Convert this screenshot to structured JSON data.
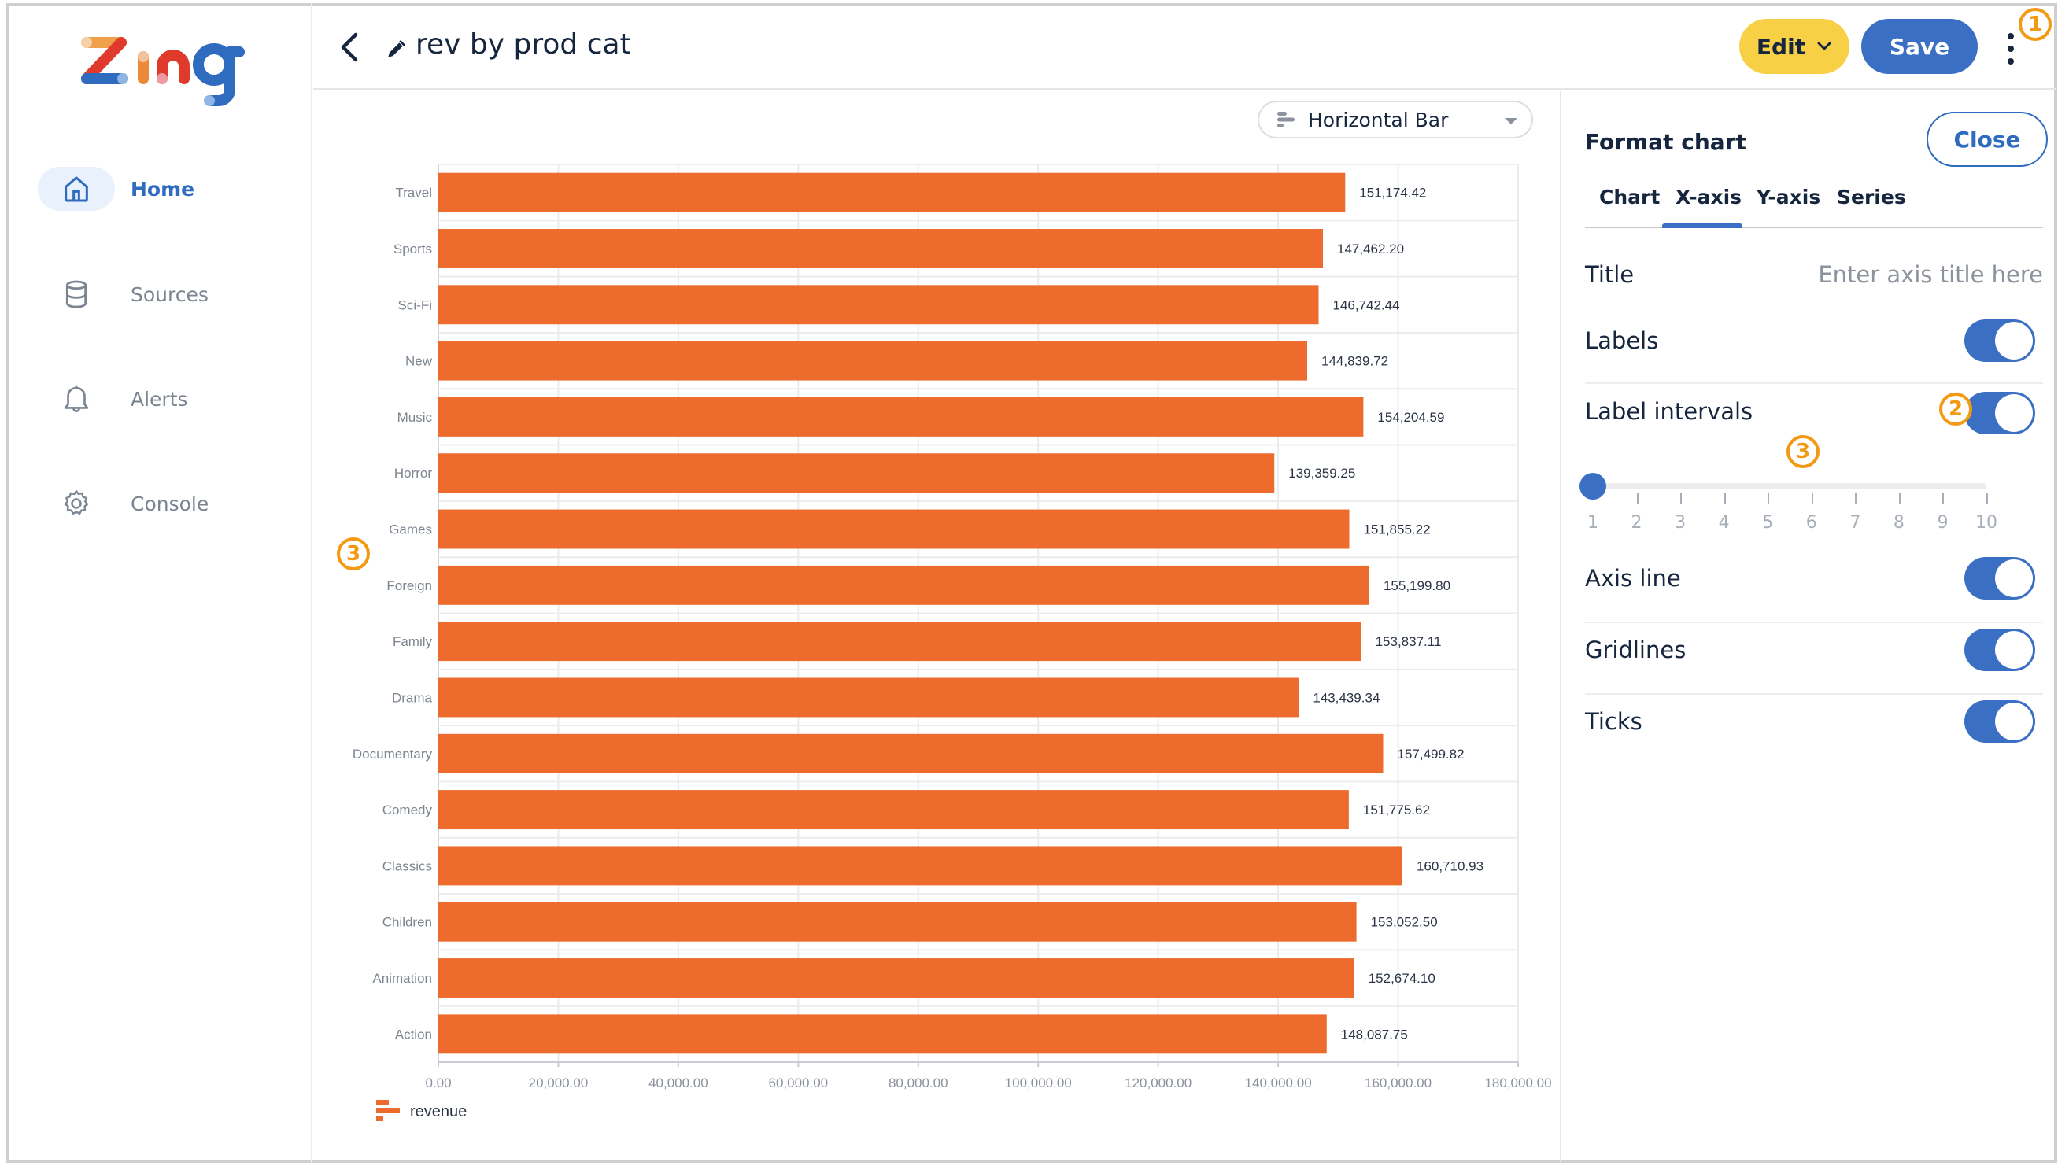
{
  "app": {
    "name": "Zing"
  },
  "sidebar": {
    "items": [
      {
        "label": "Home",
        "icon": "home-icon",
        "active": true
      },
      {
        "label": "Sources",
        "icon": "database-icon",
        "active": false
      },
      {
        "label": "Alerts",
        "icon": "bell-icon",
        "active": false
      },
      {
        "label": "Console",
        "icon": "gear-icon",
        "active": false
      }
    ]
  },
  "header": {
    "title": "rev by prod cat",
    "edit_label": "Edit",
    "save_label": "Save"
  },
  "annotations": {
    "one": "1",
    "two": "2",
    "three": "3"
  },
  "chart_type": {
    "selected": "Horizontal Bar"
  },
  "colors": {
    "bar": "#ec6b2d",
    "accent": "#3a6fc4",
    "edit": "#f7d046",
    "annotation": "#f39a12"
  },
  "format_panel": {
    "title": "Format chart",
    "close_label": "Close",
    "tabs": [
      {
        "label": "Chart",
        "active": false
      },
      {
        "label": "X-axis",
        "active": true
      },
      {
        "label": "Y-axis",
        "active": false
      },
      {
        "label": "Series",
        "active": false
      }
    ],
    "title_row": {
      "label": "Title",
      "placeholder": "Enter axis title here",
      "value": ""
    },
    "labels": {
      "label": "Labels",
      "on": true
    },
    "label_intervals": {
      "label": "Label intervals",
      "on": true,
      "value": 1,
      "min": 1,
      "max": 10,
      "ticks": [
        "1",
        "2",
        "3",
        "4",
        "5",
        "6",
        "7",
        "8",
        "9",
        "10"
      ]
    },
    "axis_line": {
      "label": "Axis line",
      "on": true
    },
    "gridlines": {
      "label": "Gridlines",
      "on": true
    },
    "ticks": {
      "label": "Ticks",
      "on": true
    }
  },
  "chart_data": {
    "type": "bar",
    "orientation": "horizontal",
    "title": "",
    "xlabel": "",
    "ylabel": "",
    "xlim": [
      0,
      180000
    ],
    "grid": true,
    "legend": {
      "position": "bottom-left",
      "entries": [
        "revenue"
      ]
    },
    "x_ticks": [
      "0.00",
      "20,000.00",
      "40,000.00",
      "60,000.00",
      "80,000.00",
      "100,000.00",
      "120,000.00",
      "140,000.00",
      "160,000.00",
      "180,000.00"
    ],
    "x_tick_values": [
      0,
      20000,
      40000,
      60000,
      80000,
      100000,
      120000,
      140000,
      160000,
      180000
    ],
    "categories": [
      "Travel",
      "Sports",
      "Sci-Fi",
      "New",
      "Music",
      "Horror",
      "Games",
      "Foreign",
      "Family",
      "Drama",
      "Documentary",
      "Comedy",
      "Classics",
      "Children",
      "Animation",
      "Action"
    ],
    "series": [
      {
        "name": "revenue",
        "values": [
          151174.42,
          147462.2,
          146742.44,
          144839.72,
          154204.59,
          139359.25,
          151855.22,
          155199.8,
          153837.11,
          143439.34,
          157499.82,
          151775.62,
          160710.93,
          153052.5,
          152674.1,
          148087.75
        ],
        "labels": [
          "151,174.42",
          "147,462.20",
          "146,742.44",
          "144,839.72",
          "154,204.59",
          "139,359.25",
          "151,855.22",
          "155,199.80",
          "153,837.11",
          "143,439.34",
          "157,499.82",
          "151,775.62",
          "160,710.93",
          "153,052.50",
          "152,674.10",
          "148,087.75"
        ]
      }
    ]
  }
}
